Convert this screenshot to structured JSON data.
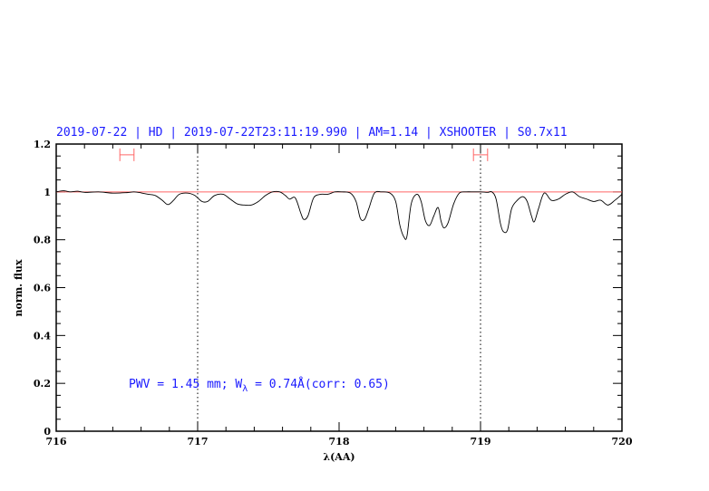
{
  "chart_data": {
    "type": "line",
    "title": "2019-07-22 | HD | 2019-07-22T23:11:19.990 | AM=1.14 | XSHOOTER | S0.7x11",
    "xlabel": "λ(AA)",
    "ylabel": "norm. flux",
    "xlim": [
      716,
      720
    ],
    "ylim": [
      0,
      1.2
    ],
    "xticks": [
      "716",
      "717",
      "718",
      "719",
      "720"
    ],
    "yticks": [
      "0",
      "0.2",
      "0.4",
      "0.6",
      "0.8",
      "1",
      "1.2"
    ],
    "grid": false,
    "vertical_markers": [
      717,
      719
    ],
    "continuum_level": 1.0,
    "annotation": {
      "pre": "PWV = 1.45 mm; W",
      "sub": "λ",
      "post": " = 0.74Å(corr: 0.65)"
    },
    "error_bars": [
      {
        "x_min": 716.45,
        "x_max": 716.55,
        "y": 1.155
      },
      {
        "x_min": 718.95,
        "x_max": 719.05,
        "y": 1.155
      }
    ],
    "colors": {
      "spectrum": "#000000",
      "continuum": "#ff6666",
      "error_bars": "#ff6666",
      "title": "#1a1aff",
      "annotation": "#1a1aff"
    },
    "series": [
      {
        "x": [
          716.0,
          716.05,
          716.1,
          716.15,
          716.2,
          716.3,
          716.4,
          716.5,
          716.55,
          716.6,
          716.65,
          716.7,
          716.75,
          716.79,
          716.83,
          716.87,
          716.93,
          716.98,
          717.03,
          717.07,
          717.12,
          717.18,
          717.23,
          717.28,
          717.33,
          717.38,
          717.43,
          717.48,
          717.53,
          717.58,
          717.62,
          717.65,
          717.69,
          717.73,
          717.75,
          717.78,
          717.82,
          717.87,
          717.92,
          717.97,
          718.02,
          718.08,
          718.12,
          718.15,
          718.18,
          718.21,
          718.25,
          718.3,
          718.36,
          718.4,
          718.43,
          718.46,
          718.48,
          718.51,
          718.55,
          718.58,
          718.61,
          718.64,
          718.67,
          718.7,
          718.72,
          718.74,
          718.77,
          718.81,
          718.85,
          718.9,
          718.95,
          719.0,
          719.05,
          719.08,
          719.11,
          719.14,
          719.16,
          719.19,
          719.22,
          719.26,
          719.3,
          719.33,
          719.36,
          719.38,
          719.41,
          719.45,
          719.5,
          719.55,
          719.6,
          719.65,
          719.7,
          719.75,
          719.8,
          719.85,
          719.9,
          719.95,
          720.0
        ],
        "y": [
          1.0,
          1.005,
          1.0,
          1.003,
          0.998,
          1.0,
          0.995,
          0.997,
          1.0,
          0.996,
          0.99,
          0.985,
          0.965,
          0.947,
          0.965,
          0.99,
          0.995,
          0.985,
          0.96,
          0.96,
          0.985,
          0.99,
          0.97,
          0.95,
          0.945,
          0.945,
          0.96,
          0.985,
          1.0,
          1.0,
          0.985,
          0.97,
          0.975,
          0.91,
          0.885,
          0.9,
          0.975,
          0.99,
          0.99,
          1.0,
          1.0,
          0.995,
          0.96,
          0.89,
          0.885,
          0.93,
          0.995,
          1.0,
          0.995,
          0.96,
          0.86,
          0.81,
          0.815,
          0.95,
          0.99,
          0.96,
          0.88,
          0.86,
          0.9,
          0.935,
          0.88,
          0.85,
          0.87,
          0.95,
          0.995,
          1.0,
          1.0,
          1.0,
          0.998,
          1.0,
          0.97,
          0.87,
          0.835,
          0.84,
          0.93,
          0.965,
          0.98,
          0.96,
          0.9,
          0.875,
          0.93,
          0.995,
          0.965,
          0.97,
          0.99,
          1.0,
          0.98,
          0.97,
          0.96,
          0.965,
          0.945,
          0.965,
          0.99
        ]
      }
    ]
  }
}
